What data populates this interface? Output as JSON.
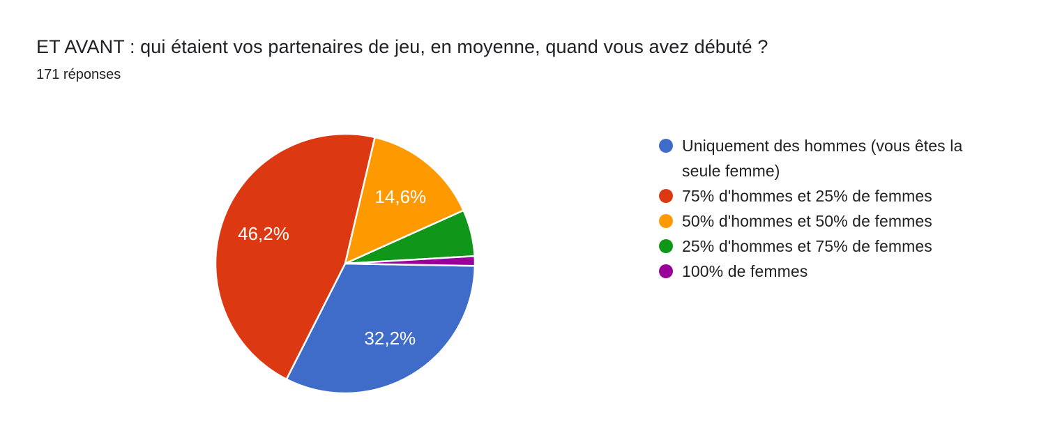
{
  "header": {
    "title": "ET AVANT : qui étaient vos partenaires de jeu, en moyenne, quand vous avez débuté ?",
    "responses": "171 réponses"
  },
  "chart_data": {
    "type": "pie",
    "title": "ET AVANT : qui étaient vos partenaires de jeu, en moyenne, quand vous avez débuté ?",
    "subtitle": "171 réponses",
    "total_responses": 171,
    "start_angle_deg_clockwise_from_north": 91,
    "direction": "clockwise",
    "legend_position": "right",
    "slice_label_color": "#ffffff",
    "slice_separator_color": "#ffffff",
    "slices": [
      {
        "legend": "Uniquement des hommes (vous êtes la seule femme)",
        "percent": 32.2,
        "label": "32,2%",
        "show_label": true,
        "color": "#3E6CC8"
      },
      {
        "legend": "75% d'hommes et 25% de femmes",
        "percent": 46.2,
        "label": "46,2%",
        "show_label": true,
        "color": "#DC3912"
      },
      {
        "legend": "50% d'hommes et 50% de femmes",
        "percent": 14.6,
        "label": "14,6%",
        "show_label": true,
        "color": "#FF9900"
      },
      {
        "legend": "25% d'hommes et 75% de femmes",
        "percent": 5.8,
        "label": "",
        "show_label": false,
        "color": "#109618"
      },
      {
        "legend": "100% de femmes",
        "percent": 1.2,
        "label": "",
        "show_label": false,
        "color": "#990099"
      }
    ]
  }
}
